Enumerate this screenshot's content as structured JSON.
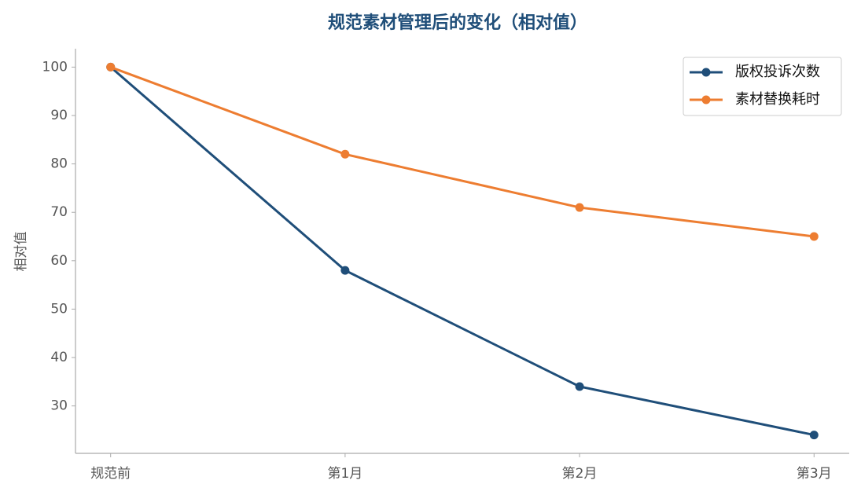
{
  "chart_data": {
    "type": "line",
    "title": "规范素材管理后的变化（相对值）",
    "y_label": "相对值",
    "categories": [
      "规范前",
      "第1月",
      "第2月",
      "第3月"
    ],
    "series": [
      {
        "name": "版权投诉次数",
        "color": "#1f4e79",
        "values": [
          100,
          58,
          34,
          24
        ]
      },
      {
        "name": "素材替换耗时",
        "color": "#ed7d31",
        "values": [
          100,
          82,
          71,
          65
        ]
      }
    ],
    "ylim": [
      20.2,
      103.8
    ],
    "yticks": [
      30,
      40,
      50,
      60,
      70,
      80,
      90,
      100
    ],
    "legend": "upper right"
  }
}
